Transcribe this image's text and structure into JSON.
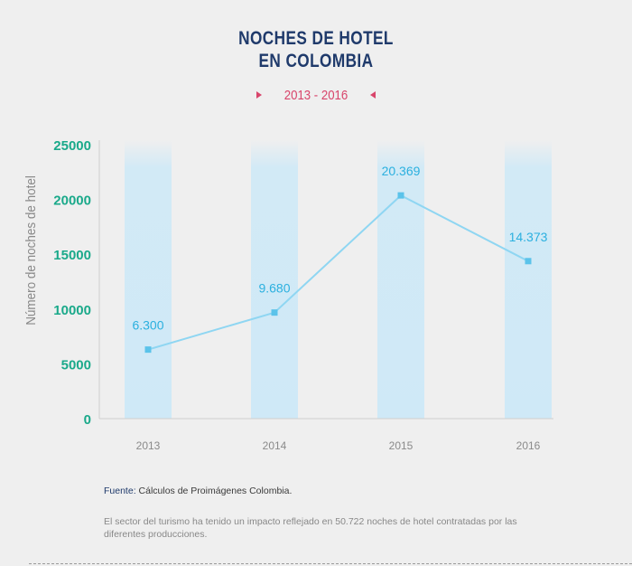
{
  "title_line1": "NOCHES DE HOTEL",
  "title_line2": "EN COLOMBIA",
  "subtitle": "2013 - 2016",
  "source_label": "Fuente:",
  "source_text": "Cálculos de Proimágenes Colombia.",
  "note": "El sector del turismo ha tenido un impacto reflejado en 50.722 noches de hotel contratadas por las diferentes producciones.",
  "colors": {
    "title": "#1f3a6b",
    "subtitle": "#d8456b",
    "y_ticks": "#1aa98a",
    "line": "#8fd6f2",
    "marker": "#5bc3ea",
    "data_label": "#2bb0df",
    "column_band": "#cfe9f7"
  },
  "chart_data": {
    "type": "line",
    "title": "NOCHES DE HOTEL EN COLOMBIA",
    "subtitle": "2013 - 2016",
    "categories": [
      "2013",
      "2014",
      "2015",
      "2016"
    ],
    "values": [
      6300,
      9680,
      20369,
      14373
    ],
    "data_labels": [
      "6.300",
      "9.680",
      "20.369",
      "14.373"
    ],
    "ylabel": "Número de noches de hotel",
    "xlabel": "",
    "ylim": [
      0,
      25000
    ],
    "yticks": [
      0,
      5000,
      10000,
      15000,
      20000,
      25000
    ],
    "ytick_labels": [
      "0",
      "5000",
      "10000",
      "15000",
      "20000",
      "25000"
    ],
    "grid": false,
    "legend": "none"
  }
}
